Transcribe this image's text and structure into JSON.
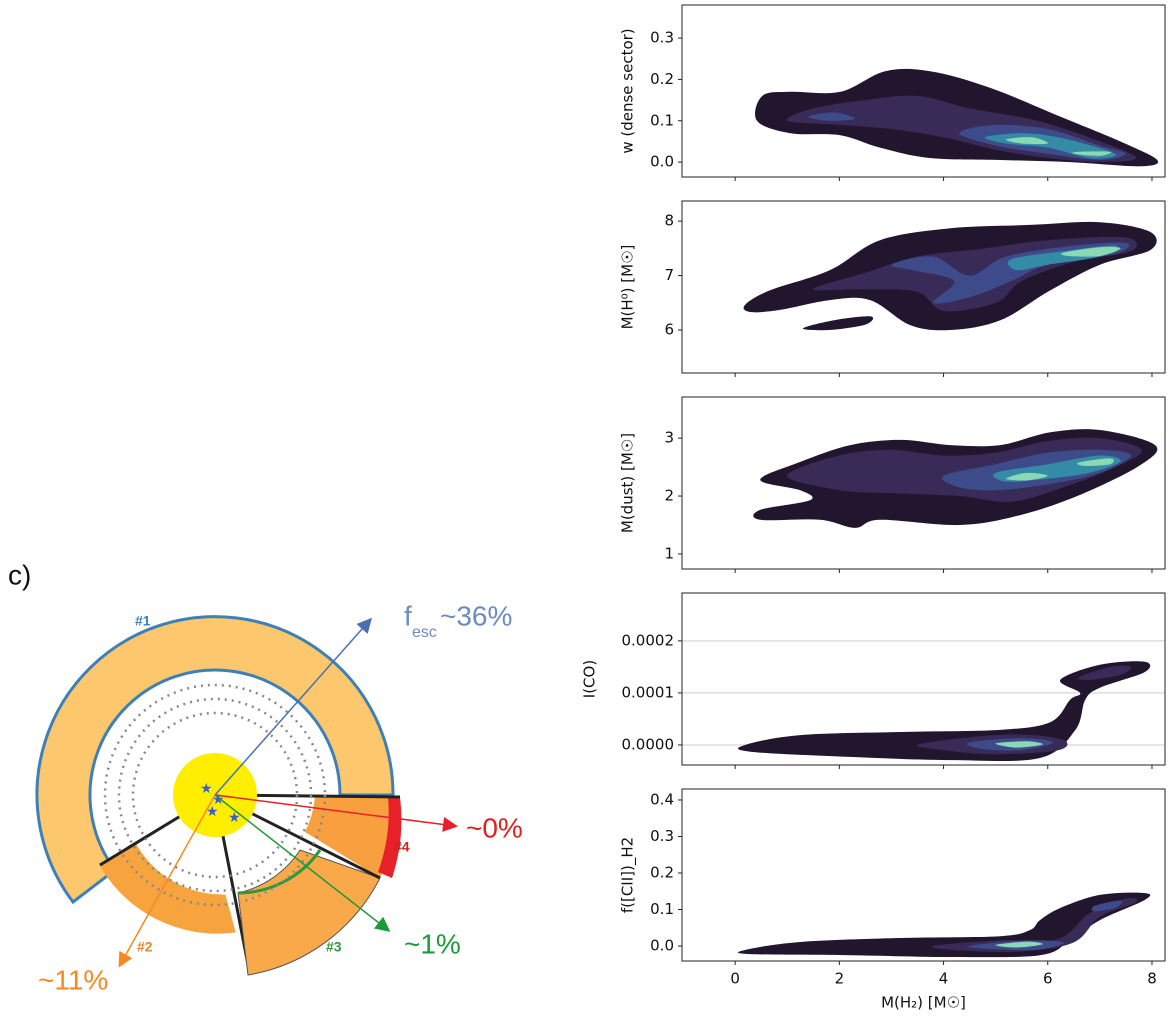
{
  "chart_data": [
    {
      "type": "kde",
      "ylabel": "w (dense sector)",
      "xlim": [
        -1.02,
        8.25
      ],
      "xticks": [
        0,
        2,
        4,
        6,
        8
      ],
      "ylim": [
        -0.036,
        0.38
      ],
      "yticks": [
        {
          "value": 0,
          "label": "0.0"
        },
        0.1,
        0.2,
        0.3
      ],
      "grid": false,
      "contours": [
        {
          "color": "#21162e",
          "x": [
            0.42,
            0.52,
            1.06,
            2.02,
            2.88,
            3.74,
            4.89,
            6.24,
            7.39,
            8.1,
            7.77,
            6.43,
            5.09,
            3.74,
            2.78,
            2.02,
            1.06
          ],
          "y": [
            0.1,
            0.16,
            0.17,
            0.17,
            0.22,
            0.22,
            0.18,
            0.11,
            0.05,
            0.005,
            -0.01,
            0,
            0.005,
            0.01,
            0.035,
            0.065,
            0.07
          ]
        },
        {
          "color": "#382b58",
          "x": [
            1.0,
            1.5,
            2.5,
            3.5,
            4.5,
            5.8,
            7.0,
            7.7,
            7.0,
            6.0,
            5.0,
            4.0,
            3.0,
            2.0
          ],
          "y": [
            0.1,
            0.13,
            0.15,
            0.16,
            0.13,
            0.1,
            0.05,
            0.01,
            0.0,
            0.01,
            0.03,
            0.06,
            0.08,
            0.09
          ]
        },
        {
          "color": "#3e4b8a",
          "x": [
            4.3,
            5.0,
            6.0,
            7.0,
            7.5,
            7.0,
            6.0,
            5.0
          ],
          "y": [
            0.07,
            0.09,
            0.08,
            0.04,
            0.02,
            0.005,
            0.02,
            0.04
          ]
        },
        {
          "color": "#3e4b8a",
          "x": [
            1.4,
            1.9,
            2.3,
            1.8
          ],
          "y": [
            0.11,
            0.12,
            0.105,
            0.1
          ]
        },
        {
          "color": "#348ba6",
          "x": [
            4.8,
            5.5,
            6.2,
            7.1,
            7.3,
            6.8,
            6.0,
            5.2
          ],
          "y": [
            0.06,
            0.07,
            0.06,
            0.03,
            0.015,
            0.01,
            0.035,
            0.045
          ]
        },
        {
          "color": "#8ad9b5",
          "x": [
            5.2,
            5.7,
            6.0,
            5.5
          ],
          "y": [
            0.055,
            0.06,
            0.045,
            0.045
          ]
        },
        {
          "color": "#8ad9b5",
          "x": [
            6.6,
            7.2,
            7.0,
            6.5
          ],
          "y": [
            0.025,
            0.025,
            0.015,
            0.02
          ]
        }
      ]
    },
    {
      "type": "kde",
      "ylabel": "M(H⁰) [M☉]",
      "xlim": [
        -1.02,
        8.25
      ],
      "xticks": [
        0,
        2,
        4,
        6,
        8
      ],
      "ylim": [
        5.21,
        8.37
      ],
      "yticks": [
        6,
        7,
        8
      ],
      "grid": false,
      "contours": [
        {
          "color": "#21162e",
          "x": [
            0.19,
            0.67,
            1.82,
            2.78,
            4.13,
            5.66,
            7.0,
            7.97,
            7.97,
            7.0,
            6.05,
            5.09,
            4.13,
            3.36,
            2.59,
            1.82,
            0.86,
            0.29
          ],
          "y": [
            6.46,
            6.73,
            7.1,
            7.65,
            7.87,
            7.93,
            7.98,
            7.8,
            7.47,
            7.2,
            6.73,
            6.18,
            6.0,
            6.09,
            6.55,
            6.55,
            6.37,
            6.33
          ]
        },
        {
          "color": "#21162e",
          "x": [
            1.3,
            1.9,
            2.6,
            2.5,
            1.8
          ],
          "y": [
            6.03,
            6.18,
            6.25,
            6.1,
            6.0
          ]
        },
        {
          "color": "#382b58",
          "x": [
            1.5,
            2.5,
            3.5,
            4.8,
            6.0,
            7.5,
            7.6,
            6.5,
            5.5,
            5.0,
            4.0,
            3.5,
            2.5
          ],
          "y": [
            6.75,
            7.05,
            7.35,
            7.5,
            7.65,
            7.7,
            7.45,
            7.25,
            6.9,
            6.5,
            6.35,
            6.7,
            6.75
          ]
        },
        {
          "color": "#3e4b8a",
          "x": [
            3.0,
            3.8,
            4.5,
            5.2,
            6.5,
            7.5,
            7.3,
            6.0,
            5.3,
            4.5,
            3.8,
            4.2,
            3.4
          ],
          "y": [
            7.2,
            7.35,
            7.0,
            7.35,
            7.55,
            7.6,
            7.4,
            7.2,
            6.9,
            6.6,
            6.5,
            6.9,
            7.1
          ]
        },
        {
          "color": "#348ba6",
          "x": [
            5.3,
            6.3,
            7.3,
            7.0,
            6.0,
            5.4
          ],
          "y": [
            7.3,
            7.45,
            7.55,
            7.35,
            7.2,
            7.1
          ]
        },
        {
          "color": "#8ad9b5",
          "x": [
            6.3,
            7.0,
            7.4,
            7.0,
            6.4
          ],
          "y": [
            7.42,
            7.52,
            7.5,
            7.36,
            7.36
          ]
        }
      ]
    },
    {
      "type": "kde",
      "ylabel": "M(dust) [M☉]",
      "xlim": [
        -1.02,
        8.25
      ],
      "xticks": [
        0,
        2,
        4,
        6,
        8
      ],
      "ylim": [
        0.74,
        3.71
      ],
      "yticks": [
        1,
        2,
        3
      ],
      "grid": false,
      "contours": [
        {
          "color": "#21162e",
          "x": [
            0.48,
            1.25,
            2.21,
            3.17,
            4.13,
            5.09,
            6.05,
            7.0,
            8.06,
            7.77,
            6.62,
            5.47,
            4.32,
            2.78,
            2.3,
            1.63,
            0.48,
            0.48,
            1.44,
            1.25
          ],
          "y": [
            2.28,
            2.59,
            2.88,
            2.97,
            2.88,
            2.88,
            3.1,
            3.14,
            2.88,
            2.53,
            2.02,
            1.67,
            1.5,
            1.59,
            1.45,
            1.59,
            1.59,
            1.76,
            1.93,
            2.1
          ]
        },
        {
          "color": "#382b58",
          "x": [
            1.0,
            2.0,
            3.0,
            4.0,
            5.0,
            6.0,
            7.0,
            7.8,
            7.3,
            6.3,
            5.3,
            4.3,
            3.0,
            2.0
          ],
          "y": [
            2.35,
            2.7,
            2.8,
            2.7,
            2.75,
            2.95,
            3.0,
            2.8,
            2.5,
            2.15,
            1.9,
            2.0,
            2.05,
            2.1
          ]
        },
        {
          "color": "#3e4b8a",
          "x": [
            4.0,
            5.0,
            6.0,
            7.0,
            7.6,
            7.0,
            6.0,
            5.0,
            4.3
          ],
          "y": [
            2.35,
            2.55,
            2.75,
            2.8,
            2.7,
            2.4,
            2.2,
            2.1,
            2.15
          ]
        },
        {
          "color": "#348ba6",
          "x": [
            5.0,
            6.0,
            7.0,
            7.4,
            6.8,
            6.0,
            5.2
          ],
          "y": [
            2.4,
            2.55,
            2.7,
            2.6,
            2.4,
            2.3,
            2.25
          ]
        },
        {
          "color": "#8ad9b5",
          "x": [
            5.2,
            5.6,
            6.0,
            5.6
          ],
          "y": [
            2.3,
            2.4,
            2.35,
            2.27
          ]
        },
        {
          "color": "#8ad9b5",
          "x": [
            6.6,
            7.2,
            7.2,
            6.7
          ],
          "y": [
            2.58,
            2.65,
            2.55,
            2.52
          ]
        }
      ]
    },
    {
      "type": "kde",
      "ylabel": "I(CO)",
      "xlim": [
        -1.02,
        8.25
      ],
      "xticks": [
        0,
        2,
        4,
        6,
        8
      ],
      "ylim": [
        -3.85e-05,
        0.000292
      ],
      "yticks": [
        {
          "value": 0,
          "label": "0.0000"
        },
        {
          "value": 0.0001,
          "label": "0.0001"
        },
        {
          "value": 0.0002,
          "label": "0.0002"
        }
      ],
      "grid": true,
      "contours": [
        {
          "color": "#21162e",
          "x": [
            0.19,
            1.25,
            3.17,
            5.09,
            6.05,
            6.43,
            6.62,
            6.24,
            7.0,
            7.86,
            7.86,
            7.0,
            6.72,
            6.53,
            5.85,
            4.13,
            2.21,
            0.29
          ],
          "y": [
            0,
            1.9e-05,
            2.5e-05,
            2.9e-05,
            4.4e-05,
            8.7e-05,
            0.0001,
            0.000125,
            0.000154,
            0.00016,
            0.00014,
            0.00011,
            8.7e-05,
            2.9e-05,
            -2.5e-05,
            -2.9e-05,
            -2.3e-05,
            -1.3e-05
          ]
        },
        {
          "color": "#382b58",
          "x": [
            3.5,
            4.5,
            5.5,
            6.3,
            6.2,
            5.0,
            4.0
          ],
          "y": [
            0,
            1.5e-05,
            2e-05,
            1e-05,
            -1e-05,
            -1.8e-05,
            -1e-05
          ]
        },
        {
          "color": "#382b58",
          "x": [
            6.6,
            7.2,
            7.6,
            7.4,
            6.8
          ],
          "y": [
            0.00013,
            0.00015,
            0.00015,
            0.000135,
            0.000125
          ]
        },
        {
          "color": "#3e4b8a",
          "x": [
            4.5,
            5.5,
            6.1,
            5.5,
            4.7
          ],
          "y": [
            5e-06,
            1.3e-05,
            5e-06,
            -1e-05,
            -7e-06
          ]
        },
        {
          "color": "#8ad9b5",
          "x": [
            5.0,
            5.6,
            5.9,
            5.4
          ],
          "y": [
            3e-06,
            7e-06,
            1e-06,
            -5e-06
          ]
        }
      ]
    },
    {
      "type": "kde",
      "ylabel": "f([CII])_H2",
      "xlabel": "M(H₂) [M☉]",
      "xlim": [
        -1.02,
        8.25
      ],
      "xticks": [
        0,
        2,
        4,
        6,
        8
      ],
      "ylim": [
        -0.041,
        0.43
      ],
      "yticks": [
        {
          "value": 0,
          "label": "0.0"
        },
        0.1,
        0.2,
        0.3,
        0.4
      ],
      "grid": false,
      "contours": [
        {
          "color": "#21162e",
          "x": [
            0.19,
            1.25,
            3.17,
            5.09,
            5.66,
            5.85,
            6.24,
            7.0,
            7.86,
            7.86,
            7.0,
            6.43,
            5.85,
            4.13,
            2.21,
            0.29
          ],
          "y": [
            -0.011,
            0.011,
            0.022,
            0.027,
            0.044,
            0.071,
            0.104,
            0.14,
            0.145,
            0.126,
            0.071,
            0.016,
            -0.025,
            -0.03,
            -0.025,
            -0.022
          ]
        },
        {
          "color": "#382b58",
          "x": [
            3.8,
            5.0,
            6.2,
            6.8,
            7.5,
            7.7,
            7.0,
            6.5,
            5.5,
            4.3
          ],
          "y": [
            0,
            0.015,
            0.02,
            0.09,
            0.13,
            0.12,
            0.08,
            0.01,
            -0.015,
            -0.012
          ]
        },
        {
          "color": "#3e4b8a",
          "x": [
            4.5,
            5.5,
            6.3,
            5.8,
            4.9
          ],
          "y": [
            0,
            0.015,
            0.01,
            -0.01,
            -0.008
          ]
        },
        {
          "color": "#3e4b8a",
          "x": [
            6.9,
            7.4,
            7.3,
            6.9
          ],
          "y": [
            0.11,
            0.125,
            0.105,
            0.095
          ]
        },
        {
          "color": "#8ad9b5",
          "x": [
            5.0,
            5.6,
            5.9,
            5.4
          ],
          "y": [
            0.003,
            0.012,
            0.005,
            -0.004
          ]
        }
      ]
    }
  ],
  "diagram": {
    "label": "c)",
    "sectors": [
      "#1",
      "#2",
      "#3",
      "#4"
    ],
    "arrows": {
      "f": "f",
      "esc": "esc",
      "blue": "~36%",
      "red": "~0%",
      "green": "~1%",
      "orange": "~11%"
    }
  }
}
